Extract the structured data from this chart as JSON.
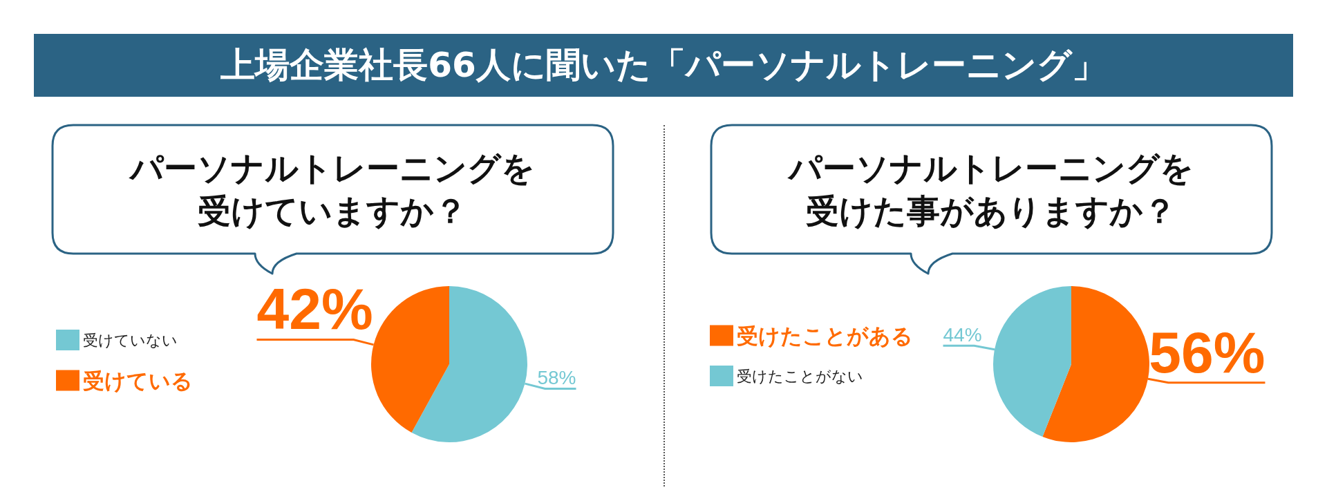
{
  "chart_data": [
    {
      "type": "pie",
      "title": "上場企業社長66人に聞いた「パーソナルトレーニング」",
      "subtitle": "パーソナルトレーニングを受けていますか？",
      "categories": [
        "受けていない",
        "受けている"
      ],
      "values": [
        58,
        42
      ],
      "colors": [
        "#74c8d3",
        "#ff6a00"
      ],
      "value_labels": [
        "58%",
        "42%"
      ],
      "legend": "left"
    },
    {
      "type": "pie",
      "subtitle": "パーソナルトレーニングを受けた事がありますか？",
      "categories": [
        "受けたことがある",
        "受けたことがない"
      ],
      "values": [
        56,
        44
      ],
      "colors": [
        "#ff6a00",
        "#74c8d3"
      ],
      "value_labels": [
        "56%",
        "44%"
      ],
      "legend": "left"
    }
  ]
}
